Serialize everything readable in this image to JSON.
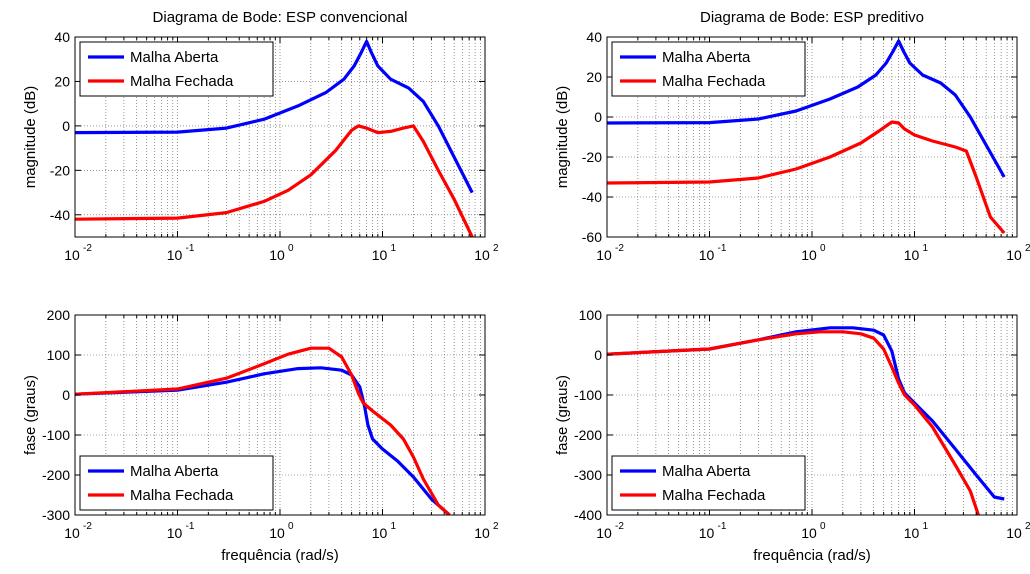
{
  "chart_data": [
    {
      "type": "line",
      "title": "Diagrama de Bode: ESP convencional",
      "xlabel": "",
      "ylabel": "magnitude (dB)",
      "xscale": "log",
      "xlim": [
        0.01,
        100
      ],
      "ylim": [
        -50,
        40
      ],
      "yticks": [
        -40,
        -20,
        0,
        20,
        40
      ],
      "grid": true,
      "legend_position": "top-left",
      "series": [
        {
          "name": "Malha Aberta",
          "color": "#0000ff",
          "x": [
            0.01,
            0.1,
            0.3,
            0.7,
            1.5,
            2.8,
            4.2,
            5.3,
            6.2,
            7,
            7.8,
            9,
            12,
            18,
            25,
            35,
            50,
            75
          ],
          "y": [
            -3,
            -2.8,
            -1,
            3,
            9,
            15,
            21,
            27,
            33,
            38,
            33,
            27,
            21,
            17,
            11,
            0,
            -14,
            -30
          ]
        },
        {
          "name": "Malha Fechada",
          "color": "#ff0000",
          "x": [
            0.01,
            0.1,
            0.3,
            0.7,
            1.2,
            2,
            3.5,
            5,
            5.8,
            7,
            9,
            12,
            16,
            20,
            25,
            35,
            50,
            75
          ],
          "y": [
            -42,
            -41.5,
            -39,
            -34,
            -29,
            -22,
            -11,
            -2,
            0,
            -1,
            -3,
            -2.5,
            -1,
            0,
            -7,
            -20,
            -33,
            -50
          ]
        }
      ]
    },
    {
      "type": "line",
      "title": "Diagrama de Bode: ESP preditivo",
      "xlabel": "",
      "ylabel": "magnitude (dB)",
      "xscale": "log",
      "xlim": [
        0.01,
        100
      ],
      "ylim": [
        -60,
        40
      ],
      "yticks": [
        -60,
        -40,
        -20,
        0,
        20,
        40
      ],
      "grid": true,
      "legend_position": "top-left",
      "series": [
        {
          "name": "Malha Aberta",
          "color": "#0000ff",
          "x": [
            0.01,
            0.1,
            0.3,
            0.7,
            1.5,
            2.8,
            4.2,
            5.3,
            6.2,
            7,
            7.8,
            9,
            12,
            18,
            25,
            35,
            50,
            75
          ],
          "y": [
            -3,
            -2.8,
            -1,
            3,
            9,
            15,
            21,
            27,
            33,
            38,
            33,
            27,
            21,
            17,
            11,
            0,
            -14,
            -30
          ]
        },
        {
          "name": "Malha Fechada",
          "color": "#ff0000",
          "x": [
            0.01,
            0.1,
            0.3,
            0.7,
            1.5,
            3,
            4.5,
            6,
            7,
            8,
            10,
            15,
            25,
            32,
            40,
            55,
            75
          ],
          "y": [
            -33,
            -32.5,
            -30.5,
            -26,
            -20,
            -13,
            -7,
            -2.5,
            -3,
            -6,
            -9,
            -12,
            -15,
            -17,
            -30,
            -50,
            -58
          ]
        }
      ]
    },
    {
      "type": "line",
      "title": "",
      "xlabel": "frequência (rad/s)",
      "ylabel": "fase (graus)",
      "xscale": "log",
      "xlim": [
        0.01,
        100
      ],
      "ylim": [
        -300,
        200
      ],
      "yticks": [
        -300,
        -200,
        -100,
        0,
        100,
        200
      ],
      "grid": true,
      "legend_position": "bottom-left",
      "series": [
        {
          "name": "Malha Aberta",
          "color": "#0000ff",
          "x": [
            0.01,
            0.1,
            0.3,
            0.7,
            1.5,
            2.5,
            4,
            5,
            6,
            6.7,
            7.2,
            8,
            10,
            14,
            20,
            30,
            45
          ],
          "y": [
            2,
            12,
            32,
            53,
            66,
            68,
            62,
            50,
            20,
            -30,
            -75,
            -110,
            -135,
            -165,
            -205,
            -260,
            -300
          ]
        },
        {
          "name": "Malha Fechada",
          "color": "#ff0000",
          "x": [
            0.01,
            0.1,
            0.3,
            0.7,
            1.2,
            2,
            3,
            4,
            5,
            5.8,
            6.5,
            8,
            12,
            16,
            20,
            25,
            35,
            45
          ],
          "y": [
            2,
            15,
            42,
            78,
            102,
            117,
            117,
            95,
            50,
            5,
            -20,
            -40,
            -75,
            -110,
            -155,
            -210,
            -275,
            -300
          ]
        }
      ]
    },
    {
      "type": "line",
      "title": "",
      "xlabel": "frequência (rad/s)",
      "ylabel": "fase (graus)",
      "xscale": "log",
      "xlim": [
        0.01,
        100
      ],
      "ylim": [
        -400,
        100
      ],
      "yticks": [
        -400,
        -300,
        -200,
        -100,
        0,
        100
      ],
      "grid": true,
      "legend_position": "bottom-left",
      "series": [
        {
          "name": "Malha Aberta",
          "color": "#0000ff",
          "x": [
            0.01,
            0.1,
            0.3,
            0.7,
            1.5,
            2.5,
            4,
            5,
            6,
            7,
            8,
            10,
            15,
            25,
            40,
            60,
            75
          ],
          "y": [
            2,
            15,
            38,
            58,
            68,
            68,
            62,
            50,
            10,
            -60,
            -95,
            -120,
            -165,
            -235,
            -300,
            -355,
            -360
          ]
        },
        {
          "name": "Malha Fechada",
          "color": "#ff0000",
          "x": [
            0.01,
            0.1,
            0.3,
            0.7,
            1.2,
            2,
            3,
            4,
            5,
            6,
            7,
            8,
            10,
            15,
            25,
            35,
            42
          ],
          "y": [
            2,
            15,
            38,
            53,
            58,
            58,
            53,
            42,
            15,
            -30,
            -70,
            -100,
            -125,
            -180,
            -275,
            -340,
            -400
          ]
        }
      ]
    }
  ]
}
